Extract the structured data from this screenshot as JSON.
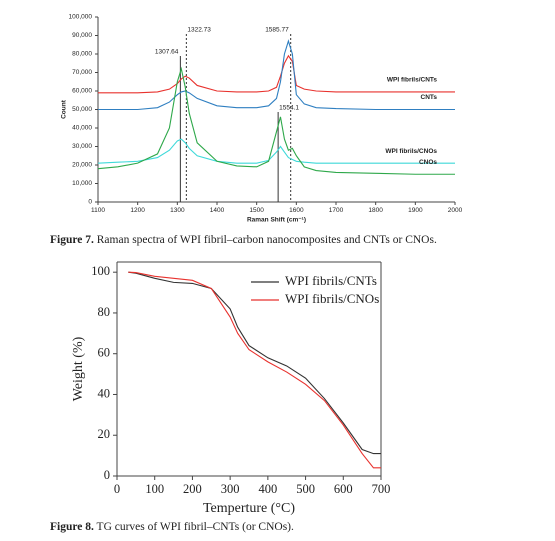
{
  "chart_data": [
    {
      "type": "line",
      "caption_label": "Figure 7.",
      "caption": "Raman spectra of WPI fibril–carbon nanocomposites and CNTs or CNOs.",
      "x_label": "Raman Shift (cm⁻¹)",
      "y_label": "Count",
      "x": [
        1100,
        1150,
        1200,
        1250,
        1280,
        1300,
        1310,
        1320,
        1330,
        1350,
        1400,
        1450,
        1500,
        1530,
        1550,
        1560,
        1570,
        1580,
        1590,
        1600,
        1620,
        1650,
        1700,
        1800,
        1900,
        2000
      ],
      "xlim": [
        1100,
        2000
      ],
      "xticks": [
        1100,
        1200,
        1300,
        1400,
        1500,
        1600,
        1700,
        1800,
        1900,
        2000
      ],
      "ylim": [
        0,
        100000
      ],
      "yticks": [
        0,
        {
          "value": 10000,
          "label": "10,000"
        },
        {
          "value": 20000,
          "label": "20,000"
        },
        {
          "value": 30000,
          "label": "30,000"
        },
        {
          "value": 40000,
          "label": "40,000"
        },
        {
          "value": 50000,
          "label": "50,000"
        },
        {
          "value": 60000,
          "label": "60,000"
        },
        {
          "value": 70000,
          "label": "70,000"
        },
        {
          "value": 80000,
          "label": "80,000"
        },
        {
          "value": 90000,
          "label": "90,000"
        },
        {
          "value": 100000,
          "label": "100,000"
        }
      ],
      "legend": "inline",
      "frame": "axes",
      "peak_lines": [
        {
          "x": 1307.64,
          "style": "solid"
        },
        {
          "x": 1322.73,
          "style": "dashed"
        },
        {
          "x": 1585.77,
          "style": "dashed"
        },
        {
          "x": 1554.1,
          "style": "solid"
        }
      ],
      "series": [
        {
          "name": "WPI fibrils/CNTs",
          "color": "#e8322e",
          "values": [
            59000,
            59000,
            59000,
            59500,
            61000,
            64000,
            66500,
            68000,
            67000,
            63000,
            60000,
            59500,
            59500,
            60000,
            62000,
            68000,
            75000,
            79000,
            76000,
            63000,
            61000,
            60000,
            59500,
            59500,
            59500,
            59500
          ]
        },
        {
          "name": "CNTs",
          "color": "#2f7fc1",
          "values": [
            50000,
            50000,
            50000,
            51000,
            54000,
            58000,
            59500,
            60000,
            59000,
            56000,
            52000,
            51000,
            51000,
            52000,
            56000,
            65000,
            80000,
            87000,
            80000,
            58000,
            53000,
            51000,
            50500,
            50000,
            50000,
            50000
          ]
        },
        {
          "name": "WPI fibrils/CNOs",
          "color": "#3fd9d9",
          "values": [
            21000,
            21500,
            22000,
            24000,
            28000,
            33000,
            34000,
            32000,
            29000,
            25000,
            22000,
            21000,
            21000,
            22500,
            27000,
            30000,
            27000,
            24000,
            23000,
            22000,
            21500,
            21000,
            21000,
            21000,
            21000,
            21000
          ]
        },
        {
          "name": "CNOs",
          "color": "#2ea84a",
          "values": [
            18000,
            19000,
            21000,
            26000,
            40000,
            65000,
            72000,
            62000,
            48000,
            32000,
            22000,
            19500,
            19000,
            22000,
            38000,
            46000,
            34000,
            28000,
            29000,
            25000,
            19000,
            17000,
            16000,
            15500,
            15000,
            15000
          ]
        }
      ]
    },
    {
      "type": "line",
      "caption_label": "Figure 8.",
      "caption": "TG curves of WPI fibril–CNTs (or CNOs).",
      "x_label": "Temperture (°C)",
      "y_label": "Weight (%)",
      "x": [
        30,
        50,
        100,
        150,
        200,
        250,
        300,
        320,
        350,
        400,
        450,
        500,
        550,
        600,
        650,
        680,
        700
      ],
      "xlim": [
        0,
        700
      ],
      "xticks": [
        0,
        100,
        200,
        300,
        400,
        500,
        600,
        700
      ],
      "ylim": [
        0,
        105
      ],
      "yticks": [
        0,
        20,
        40,
        60,
        80,
        100
      ],
      "legend": "upper right",
      "frame": "box",
      "series": [
        {
          "name": "WPI fibrils/CNTs",
          "color": "#333333",
          "values": [
            100,
            99.5,
            97,
            95,
            94.5,
            92,
            82,
            73,
            64,
            58,
            54,
            48,
            38,
            26,
            13,
            11,
            11
          ]
        },
        {
          "name": "WPI fibrils/CNOs",
          "color": "#e8322e",
          "values": [
            100,
            99.8,
            98,
            97,
            96,
            92,
            78,
            70,
            62,
            56,
            51,
            45,
            37,
            25,
            11,
            4,
            4
          ]
        }
      ]
    }
  ]
}
